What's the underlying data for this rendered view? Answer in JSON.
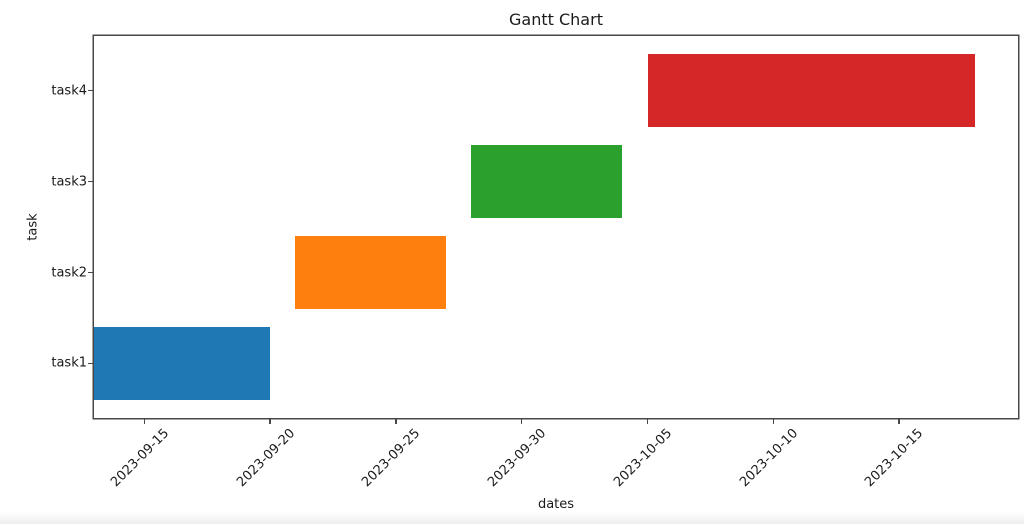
{
  "figure": {
    "background": "#ffffff",
    "text_color": "#1a1a1a",
    "spine_color": "#474747"
  },
  "chart_data": {
    "type": "bar",
    "variant": "horizontal-gantt",
    "title": "Gantt Chart",
    "xlabel": "dates",
    "ylabel": "task",
    "grid": false,
    "legend": "none",
    "categories": [
      "task1",
      "task2",
      "task3",
      "task4"
    ],
    "series": [
      {
        "name": "task1",
        "start": "2023-09-13",
        "end": "2023-09-20",
        "duration_days": 7,
        "color": "#1f77b4"
      },
      {
        "name": "task2",
        "start": "2023-09-21",
        "end": "2023-09-27",
        "duration_days": 6,
        "color": "#ff7f0e"
      },
      {
        "name": "task3",
        "start": "2023-09-28",
        "end": "2023-10-04",
        "duration_days": 6,
        "color": "#2ca02c"
      },
      {
        "name": "task4",
        "start": "2023-10-05",
        "end": "2023-10-18",
        "duration_days": 13,
        "color": "#d62728"
      }
    ],
    "x_ticks": [
      "2023-09-15",
      "2023-09-20",
      "2023-09-25",
      "2023-09-30",
      "2023-10-05",
      "2023-10-10",
      "2023-10-15"
    ],
    "x_tick_rotation_deg": 45,
    "xlim": [
      "2023-09-13T00:00:00Z",
      "2023-10-19T17:30:00Z"
    ],
    "ylim": [
      0.4,
      4.6
    ],
    "bar_height_units": 0.8
  }
}
